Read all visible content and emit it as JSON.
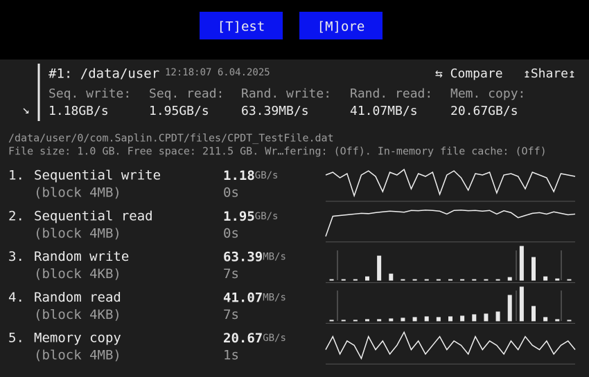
{
  "buttons": [
    "[T]est",
    "[M]ore"
  ],
  "header": {
    "title": "#1: /data/user",
    "timestamp": "12:18:07 6.04.2025",
    "compare": "⇆ Compare",
    "share": "↥Share↥",
    "arrow": "↘",
    "summary": [
      {
        "label": "Seq. write:",
        "value": "1.18GB/s"
      },
      {
        "label": "Seq. read:",
        "value": "1.95GB/s"
      },
      {
        "label": "Rand. write:",
        "value": "63.39MB/s"
      },
      {
        "label": "Rand. read:",
        "value": "41.07MB/s"
      },
      {
        "label": "Mem. copy:",
        "value": "20.67GB/s"
      }
    ]
  },
  "file": {
    "path": "/data/user/0/com.Saplin.CPDT/files/CPDT_TestFile.dat",
    "info": "File size: 1.0 GB. Free space: 211.5 GB. Wr…fering: (Off). In-memory file cache: (Off)"
  },
  "tests": [
    {
      "number": "1.",
      "name": "Sequential write",
      "block": "(block 4MB)",
      "value": "1.18",
      "unit": "GB/s",
      "time": "0s",
      "chart": {
        "type": "line",
        "values": [
          1.2,
          1.22,
          1.18,
          1.21,
          1.05,
          1.2,
          1.23,
          1.19,
          1.08,
          1.22,
          1.2,
          1.24,
          1.1,
          1.21,
          1.19,
          1.22,
          1.06,
          1.2,
          1.23,
          1.18,
          1.09,
          1.21,
          1.2,
          1.22,
          1.07,
          1.2,
          1.21,
          1.19,
          1.1,
          1.22,
          1.2,
          1.18,
          1.08,
          1.21,
          1.2,
          1.19
        ]
      }
    },
    {
      "number": "2.",
      "name": "Sequential read",
      "block": "(block 4MB)",
      "value": "1.95",
      "unit": "GB/s",
      "time": "0s",
      "chart": {
        "type": "line",
        "values": [
          0.3,
          1.7,
          1.75,
          1.8,
          1.85,
          1.9,
          1.88,
          1.95,
          2.0,
          2.05,
          2.02,
          1.98,
          2.1,
          2.08,
          2.12,
          2.1,
          2.05,
          1.85,
          2.1,
          2.12,
          2.08,
          2.1,
          2.05,
          2.1,
          1.85,
          2.08,
          1.95,
          1.6,
          1.75,
          1.9,
          1.95,
          1.85,
          2.0,
          1.9,
          1.8,
          1.85
        ]
      }
    },
    {
      "number": "3.",
      "name": "Random write",
      "block": "(block 4KB)",
      "value": "63.39",
      "unit": "MB/s",
      "time": "7s",
      "chart": {
        "type": "bar",
        "values": [
          4,
          4,
          4,
          12,
          72,
          20,
          4,
          4,
          4,
          4,
          4,
          4,
          4,
          4,
          4,
          10,
          100,
          68,
          12,
          6,
          4
        ]
      }
    },
    {
      "number": "4.",
      "name": "Random read",
      "block": "(block 4KB)",
      "value": "41.07",
      "unit": "MB/s",
      "time": "7s",
      "chart": {
        "type": "bar",
        "values": [
          4,
          4,
          4,
          6,
          6,
          8,
          10,
          12,
          14,
          12,
          14,
          16,
          20,
          22,
          28,
          76,
          100,
          44,
          12,
          6,
          4
        ]
      }
    },
    {
      "number": "5.",
      "name": "Memory copy",
      "block": "(block 4MB)",
      "value": "20.67",
      "unit": "GB/s",
      "time": "1s",
      "chart": {
        "type": "line",
        "values": [
          20.6,
          20.9,
          20.5,
          20.8,
          20.7,
          20.4,
          20.9,
          20.6,
          20.8,
          20.5,
          20.7,
          21.0,
          20.6,
          20.8,
          20.5,
          20.7,
          20.9,
          20.6,
          20.8,
          20.7,
          20.5,
          20.9,
          20.6,
          20.8,
          20.7,
          20.5,
          20.8,
          20.6,
          20.9,
          20.7,
          20.6,
          20.8,
          20.5,
          20.7,
          20.8,
          20.6
        ]
      }
    }
  ]
}
